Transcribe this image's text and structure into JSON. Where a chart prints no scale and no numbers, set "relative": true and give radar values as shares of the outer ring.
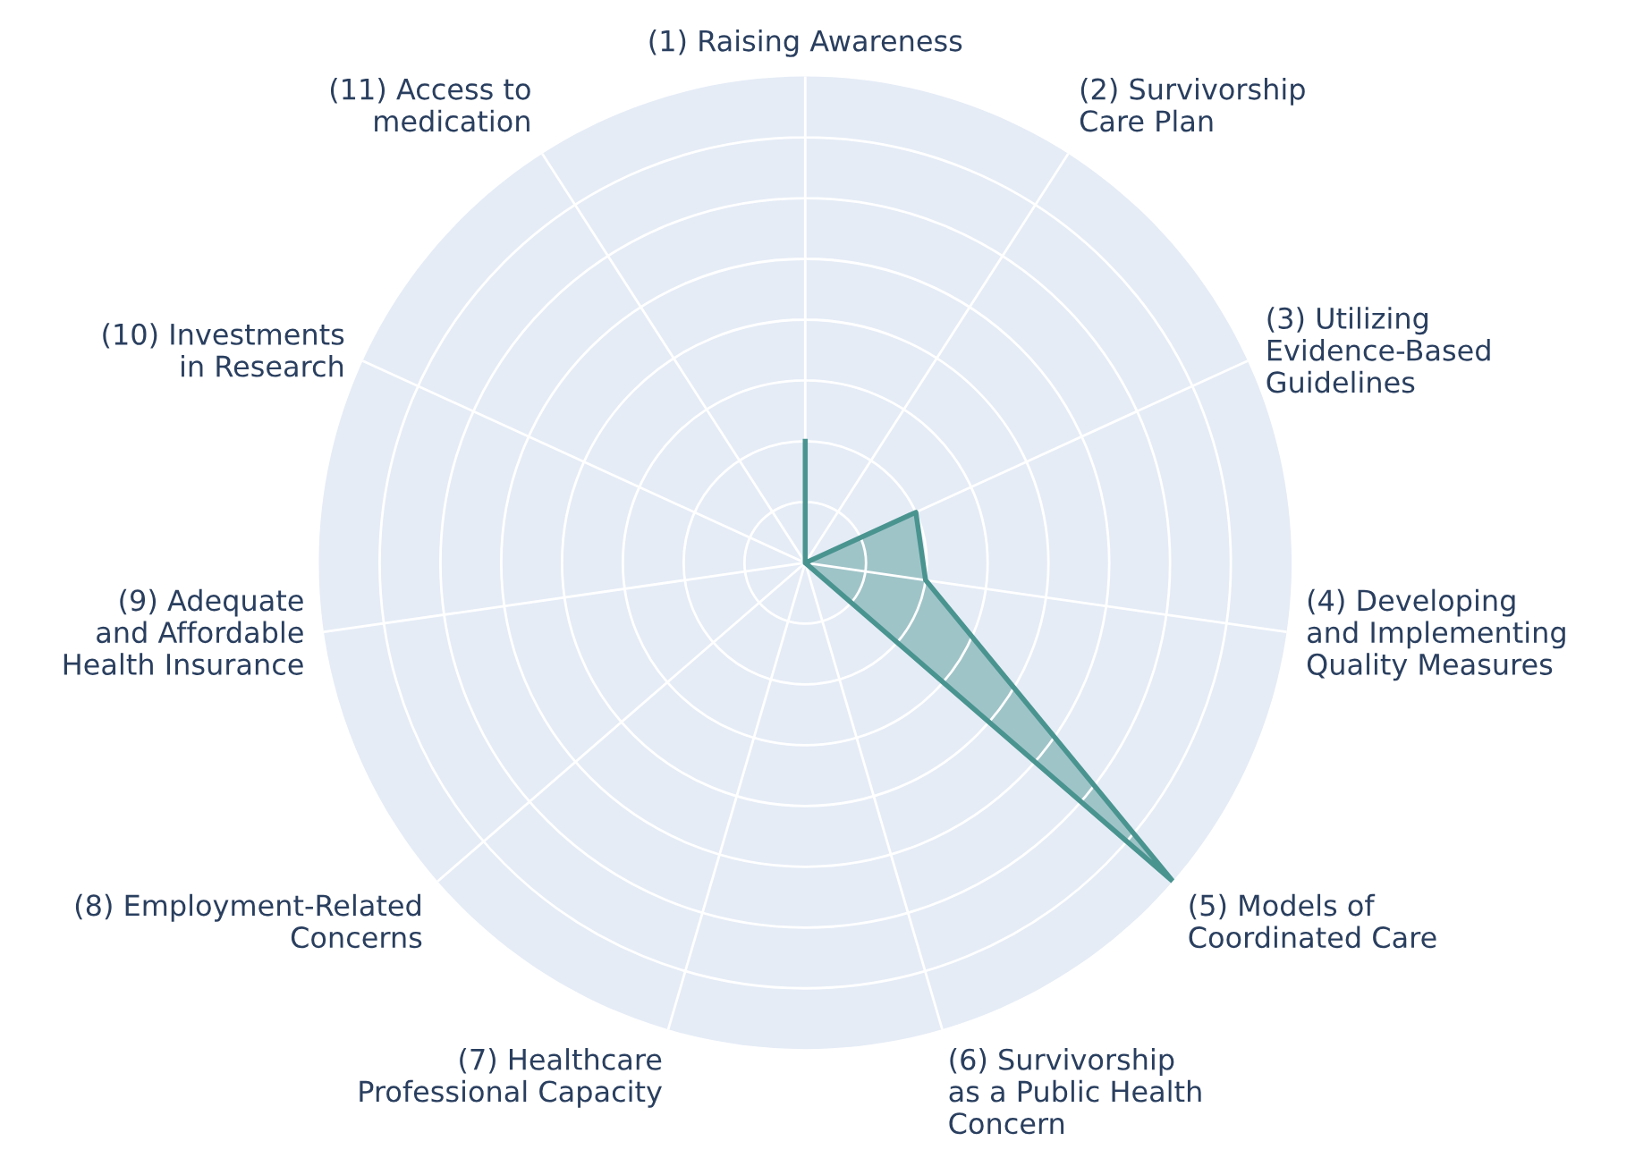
{
  "chart_data": {
    "type": "radar",
    "relative": true,
    "grid": true,
    "categories": [
      "(1) Raising Awareness",
      "(2) Survivorship\nCare Plan",
      "(3) Utilizing\nEvidence-Based\nGuidelines",
      "(4) Developing\nand Implementing\nQuality Measures",
      "(5) Models of\nCoordinated Care",
      "(6) Survivorship\nas a Public Health\nConcern",
      "(7) Healthcare\nProfessional Capacity",
      "(8) Employment-Related\nConcerns",
      "(9) Adequate\nand Affordable\nHealth Insurance",
      "(10) Investments\nin Research",
      "(11) Access to\nmedication"
    ],
    "series": [
      {
        "color": "#4a9490",
        "values": [
          0.25,
          0,
          0.25,
          0.25,
          1,
          0,
          0,
          0,
          0,
          0,
          0
        ]
      }
    ]
  }
}
